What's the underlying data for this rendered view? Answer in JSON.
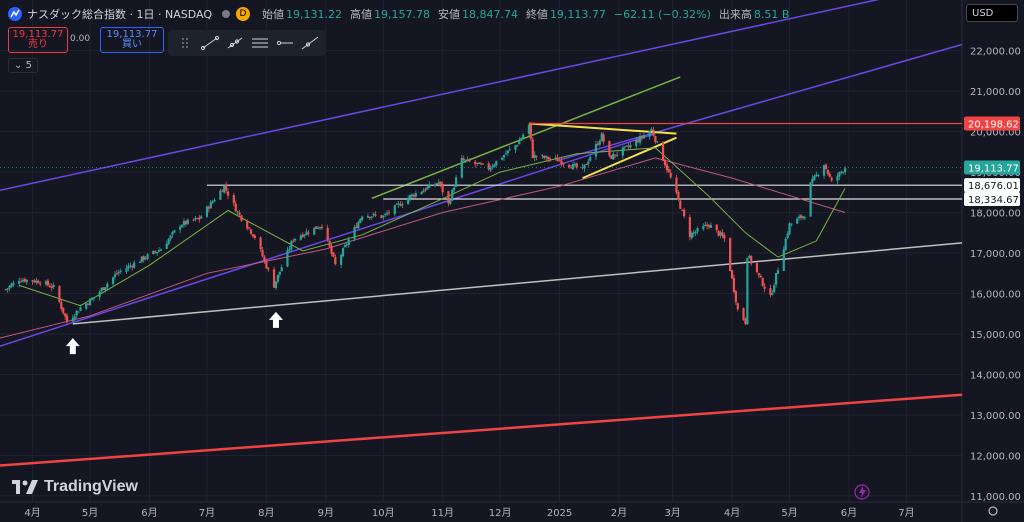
{
  "header": {
    "title": "ナスダック総合指数 · 1日 · NASDAQ",
    "badge": "D",
    "open_label": "始値",
    "open": "19,131.22",
    "high_label": "高値",
    "high": "19,157.78",
    "low_label": "安値",
    "low": "18,847.74",
    "close_label": "終値",
    "close": "19,113.77",
    "change": "−62.11 (−0.32%)",
    "volume_label": "出来高",
    "volume": "8.51 B"
  },
  "trade": {
    "sell_price": "19,113.77",
    "sell_label": "売り",
    "spread": "0.00",
    "buy_price": "19,113.77",
    "buy_label": "買い"
  },
  "interval": "5",
  "currency": "USD",
  "brand": "TradingView",
  "colors": {
    "background": "#141622",
    "up": "#26a69a",
    "down": "#ef5350",
    "channel": "#6a48e6",
    "support": "#c0c0c0",
    "long_trend": "#ef4444",
    "triangle": "#f5e04a",
    "ma_short": "#7cb342",
    "ma_long": "#c2597e"
  },
  "chart_data": {
    "type": "candlestick",
    "title": "ナスダック総合指数 · 1日 · NASDAQ",
    "x_ticks": [
      {
        "date": "2024-04-01",
        "label": "4月"
      },
      {
        "date": "2024-05-01",
        "label": "5月"
      },
      {
        "date": "2024-06-01",
        "label": "6月"
      },
      {
        "date": "2024-07-01",
        "label": "7月"
      },
      {
        "date": "2024-08-01",
        "label": "8月"
      },
      {
        "date": "2024-09-01",
        "label": "9月"
      },
      {
        "date": "2024-10-01",
        "label": "10月"
      },
      {
        "date": "2024-11-01",
        "label": "11月"
      },
      {
        "date": "2024-12-01",
        "label": "12月"
      },
      {
        "date": "2025-01-01",
        "label": "2025"
      },
      {
        "date": "2025-02-01",
        "label": "2月"
      },
      {
        "date": "2025-03-01",
        "label": "3月"
      },
      {
        "date": "2025-04-01",
        "label": "4月"
      },
      {
        "date": "2025-05-01",
        "label": "5月"
      },
      {
        "date": "2025-06-01",
        "label": "6月"
      },
      {
        "date": "2025-07-01",
        "label": "7月"
      }
    ],
    "y_ticks": [
      11000,
      12000,
      13000,
      14000,
      15000,
      16000,
      17000,
      18000,
      19000,
      20000,
      21000,
      22000
    ],
    "y_tick_labels": [
      "11,000.00",
      "12,000.00",
      "13,000.00",
      "14,000.00",
      "15,000.00",
      "16,000.00",
      "17,000.00",
      "18,000.00",
      "19,000.00",
      "20,000.00",
      "21,000.00",
      "22,000.00"
    ],
    "ylim": [
      10850,
      23250
    ],
    "xlim": [
      "2024-03-15",
      "2025-07-30"
    ],
    "price_path": [
      [
        "2024-03-18",
        16100
      ],
      [
        "2024-03-25",
        16350
      ],
      [
        "2024-04-05",
        16300
      ],
      [
        "2024-04-12",
        16150
      ],
      [
        "2024-04-19",
        15300
      ],
      [
        "2024-04-26",
        15650
      ],
      [
        "2024-05-03",
        15900
      ],
      [
        "2024-05-15",
        16500
      ],
      [
        "2024-05-28",
        16850
      ],
      [
        "2024-06-07",
        17100
      ],
      [
        "2024-06-17",
        17700
      ],
      [
        "2024-06-27",
        17850
      ],
      [
        "2024-07-10",
        18650
      ],
      [
        "2024-07-17",
        18000
      ],
      [
        "2024-07-26",
        17400
      ],
      [
        "2024-08-05",
        16200
      ],
      [
        "2024-08-15",
        17350
      ],
      [
        "2024-08-30",
        17700
      ],
      [
        "2024-09-06",
        16700
      ],
      [
        "2024-09-20",
        17950
      ],
      [
        "2024-10-01",
        17900
      ],
      [
        "2024-10-15",
        18400
      ],
      [
        "2024-10-30",
        18750
      ],
      [
        "2024-11-04",
        18200
      ],
      [
        "2024-11-11",
        19300
      ],
      [
        "2024-11-25",
        19100
      ],
      [
        "2024-12-10",
        19700
      ],
      [
        "2024-12-16",
        20150
      ],
      [
        "2024-12-18",
        19400
      ],
      [
        "2024-12-31",
        19300
      ],
      [
        "2025-01-13",
        19050
      ],
      [
        "2025-01-23",
        19900
      ],
      [
        "2025-01-27",
        19350
      ],
      [
        "2025-02-07",
        19650
      ],
      [
        "2025-02-18",
        20050
      ],
      [
        "2025-02-28",
        18850
      ],
      [
        "2025-03-10",
        17450
      ],
      [
        "2025-03-20",
        17700
      ],
      [
        "2025-03-28",
        17350
      ],
      [
        "2025-04-04",
        15600
      ],
      [
        "2025-04-08",
        15300
      ],
      [
        "2025-04-09",
        16950
      ],
      [
        "2025-04-21",
        15900
      ],
      [
        "2025-05-01",
        17700
      ],
      [
        "2025-05-09",
        17950
      ],
      [
        "2025-05-12",
        18700
      ],
      [
        "2025-05-19",
        19200
      ],
      [
        "2025-05-23",
        18750
      ],
      [
        "2025-05-30",
        19113.77
      ]
    ],
    "ma_short": [
      [
        "2024-03-25",
        16200
      ],
      [
        "2024-04-26",
        15700
      ],
      [
        "2024-06-01",
        16700
      ],
      [
        "2024-07-12",
        18050
      ],
      [
        "2024-08-20",
        17050
      ],
      [
        "2024-09-20",
        17450
      ],
      [
        "2024-10-30",
        18300
      ],
      [
        "2024-12-01",
        19000
      ],
      [
        "2025-01-10",
        19450
      ],
      [
        "2025-02-20",
        19600
      ],
      [
        "2025-03-20",
        18400
      ],
      [
        "2025-04-08",
        17500
      ],
      [
        "2025-04-25",
        16900
      ],
      [
        "2025-05-15",
        17300
      ],
      [
        "2025-05-30",
        18600
      ]
    ],
    "ma_long": [
      [
        "2024-03-15",
        14900
      ],
      [
        "2024-05-01",
        15450
      ],
      [
        "2024-07-01",
        16500
      ],
      [
        "2024-09-01",
        17100
      ],
      [
        "2024-11-01",
        18000
      ],
      [
        "2025-01-01",
        18650
      ],
      [
        "2025-02-20",
        19350
      ],
      [
        "2025-04-01",
        18850
      ],
      [
        "2025-05-30",
        18000
      ]
    ],
    "drawings": [
      {
        "name": "upper-channel-line",
        "color": "#6a48e6",
        "from": [
          "2024-03-15",
          18550
        ],
        "to": [
          "2025-06-20",
          23300
        ]
      },
      {
        "name": "middle-channel-line",
        "color": "#6a48e6",
        "from": [
          "2025-01-01",
          19300
        ],
        "to": [
          "2025-07-30",
          22150
        ]
      },
      {
        "name": "lower-channel-line",
        "color": "#6a48e6",
        "from": [
          "2024-03-15",
          14700
        ],
        "to": [
          "2025-02-20",
          19950
        ]
      },
      {
        "name": "support-trendline",
        "color": "#c0c0c0",
        "from": [
          "2024-04-22",
          15250
        ],
        "to": [
          "2025-07-30",
          17250
        ]
      },
      {
        "name": "long-term-red-trendline",
        "color": "#ef4444",
        "from": [
          "2024-03-15",
          11750
        ],
        "to": [
          "2025-07-30",
          13500
        ]
      },
      {
        "name": "green-trendline",
        "color": "#7cb342",
        "from": [
          "2024-09-25",
          18350
        ],
        "to": [
          "2025-03-05",
          21350
        ]
      },
      {
        "name": "triangle-top-line",
        "color": "#f5e04a",
        "from": [
          "2024-12-16",
          20200
        ],
        "to": [
          "2025-03-03",
          19950
        ]
      },
      {
        "name": "triangle-bottom-line",
        "color": "#f5e04a",
        "from": [
          "2025-01-13",
          18850
        ],
        "to": [
          "2025-03-03",
          19850
        ]
      }
    ],
    "horizontal_levels": [
      {
        "value": 20198.62,
        "label": "20,198.62",
        "color": "#ef4444",
        "from": "2024-12-16"
      },
      {
        "value": 18676.01,
        "label": "18,676.01",
        "color": "#e0e0e0",
        "from": "2024-07-01"
      },
      {
        "value": 18334.67,
        "label": "18,334.67",
        "color": "#e0e0e0",
        "from": "2024-10-01"
      }
    ],
    "last_price": {
      "value": 19113.77,
      "label": "19,113.77",
      "color": "#26a69a"
    },
    "arrows": [
      {
        "date": "2024-04-22",
        "value": 14700
      },
      {
        "date": "2024-08-06",
        "value": 15350
      }
    ]
  }
}
